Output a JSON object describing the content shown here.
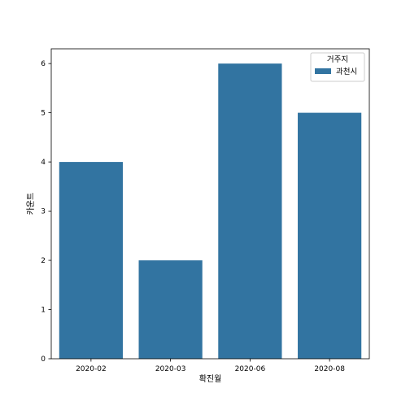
{
  "chart_data": {
    "type": "bar",
    "categories": [
      "2020-02",
      "2020-03",
      "2020-06",
      "2020-08"
    ],
    "series": [
      {
        "name": "과천시",
        "values": [
          4,
          2,
          6,
          5
        ],
        "color": "#3274a1"
      }
    ],
    "xlabel": "확진월",
    "ylabel": "카운트",
    "ylim": [
      0,
      6.3
    ],
    "yticks": [
      0,
      1,
      2,
      3,
      4,
      5,
      6
    ],
    "grid": false,
    "legend": {
      "title": "거주지",
      "placement": "top-right"
    }
  }
}
